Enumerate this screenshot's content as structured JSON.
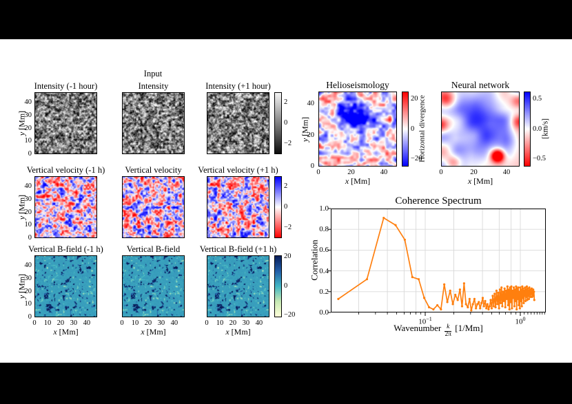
{
  "figure": {
    "input_label": "Input",
    "colors": {
      "background": "#ffffff",
      "letterbox": "#000000",
      "line_orange": "#ff7f0e",
      "grid_gray": "#d9d9d9",
      "axis_black": "#000000",
      "bfield_teal": "#41b6c4",
      "cmap_gray": [
        "#f5f5f5",
        "#0d0d0d"
      ],
      "cmap_bwr": [
        "#0000ff",
        "#ffffff",
        "#ff0000"
      ],
      "cmap_ylgnbu_r": [
        "#081d58",
        "#225ea8",
        "#41b6c4",
        "#c7e9b4",
        "#ffffd9"
      ]
    }
  },
  "axes_labels": {
    "x_var": "x",
    "y_var": "y",
    "unit": "[Mm]"
  },
  "coherence_labels": {
    "xlabel_prefix": "Wavenumber",
    "frac_num": "k",
    "frac_den": "2π",
    "xlabel_suffix": "[1/Mm]",
    "ytick_labels": [
      "0.0",
      "0.2",
      "0.4",
      "0.6",
      "0.8",
      "1.0"
    ],
    "xtick_major": [
      {
        "base": "10",
        "exp": "−1"
      },
      {
        "base": "10",
        "exp": "0"
      }
    ]
  },
  "chart_data": [
    {
      "type": "heatmap",
      "panel_group": "row-intensity",
      "titles": [
        "Intensity (-1 hour)",
        "Intensity",
        "Intensity (+1 hour)"
      ],
      "cmap": "grayscale granulation",
      "cbar_ticks": [
        "2",
        "0",
        "−2"
      ],
      "x_range": [
        0,
        48
      ],
      "y_range": [
        0,
        48
      ],
      "y_ticks": [
        40,
        30,
        20,
        10,
        0
      ],
      "x_ticks": null,
      "ylabel": "y [Mm]"
    },
    {
      "type": "heatmap",
      "panel_group": "row-vertical-velocity",
      "titles": [
        "Vertical velocity (-1 h)",
        "Vertical velocity",
        "Vertical velocity (+1 h)"
      ],
      "cmap": "red-white-blue (blue positive)",
      "cbar_ticks": [
        "2",
        "0",
        "−2"
      ],
      "x_range": [
        0,
        48
      ],
      "y_range": [
        0,
        48
      ],
      "y_ticks": [
        40,
        30,
        20,
        10,
        0
      ],
      "x_ticks": null,
      "ylabel": "y [Mm]"
    },
    {
      "type": "heatmap",
      "panel_group": "row-vertical-bfield",
      "titles": [
        "Vertical B-field (-1 h)",
        "Vertical B-field",
        "Vertical B-field (+1 h)"
      ],
      "cmap": "YlGnBu reversed (teal background, dark blue spots)",
      "cbar_ticks": [
        "20",
        "0",
        "−20"
      ],
      "x_range": [
        0,
        48
      ],
      "y_range": [
        0,
        48
      ],
      "y_ticks": [
        40,
        30,
        20,
        10,
        0
      ],
      "x_ticks": [
        0,
        10,
        20,
        30,
        40
      ],
      "xlabel": "x [Mm]",
      "ylabel": "y [Mm]"
    },
    {
      "type": "heatmap",
      "panel_group": "map-helioseismology",
      "titles": [
        "Helioseismology"
      ],
      "cmap": "blue-white-red (red positive), mottled with blue blob upper-centre",
      "cbar_ticks": [
        "20",
        "0",
        "−20"
      ],
      "cbar_label": "Horizontal divergence",
      "x_range": [
        0,
        48
      ],
      "y_range": [
        0,
        48
      ],
      "y_ticks": [
        40,
        20,
        0
      ],
      "x_ticks": [
        0,
        20,
        40
      ],
      "xlabel": "x [Mm]",
      "ylabel": "y [Mm]"
    },
    {
      "type": "heatmap",
      "panel_group": "map-neural-network",
      "titles": [
        "Neural network"
      ],
      "cmap": "blue-white-red (blue positive), smooth; strong red blob lower-right",
      "cbar_ticks": [
        "0.5",
        "0.0",
        "−0.5"
      ],
      "cbar_label": "[km/s]",
      "x_range": [
        0,
        48
      ],
      "y_range": [
        0,
        48
      ],
      "y_ticks": null,
      "x_ticks": [
        0,
        20,
        40
      ],
      "xlabel": "x [Mm]"
    },
    {
      "type": "line",
      "title": "Coherence Spectrum",
      "xlabel": "Wavenumber k/2π [1/Mm]",
      "ylabel": "Correlation",
      "xscale": "log",
      "xlim": [
        0.0102,
        1.85
      ],
      "ylim": [
        0.0,
        1.0
      ],
      "x_major_ticks": [
        0.1,
        1.0
      ],
      "y_ticks": [
        0.0,
        0.2,
        0.4,
        0.6,
        0.8,
        1.0
      ],
      "grid": true,
      "legend": false,
      "series": [
        {
          "name": "coherence",
          "color": "#ff7f0e",
          "marker": "dot",
          "x": [
            0.0122,
            0.0244,
            0.0366,
            0.0488,
            0.061,
            0.0732,
            0.0854,
            0.0976,
            0.1098,
            0.122,
            0.1342,
            0.1464,
            0.1586,
            0.1708,
            0.183,
            0.1952,
            0.2074,
            0.2196,
            0.2318,
            0.244,
            0.2562,
            0.2684,
            0.2806,
            0.2928,
            0.305,
            0.3172,
            0.3294,
            0.3416,
            0.3538,
            0.366,
            0.3782,
            0.3904,
            0.4026,
            0.4148,
            0.427,
            0.4392,
            0.4514,
            0.4636,
            0.4758,
            0.488,
            0.5002,
            0.5124,
            0.5246,
            0.5368,
            0.549,
            0.5612,
            0.5734,
            0.5856,
            0.5978,
            0.61,
            0.6222,
            0.6344,
            0.6466,
            0.6588,
            0.671,
            0.6832,
            0.6954,
            0.7076,
            0.7198,
            0.732,
            0.7442,
            0.7564,
            0.7686,
            0.7808,
            0.793,
            0.8052,
            0.8174,
            0.8296,
            0.8418,
            0.854,
            0.8662,
            0.8784,
            0.8906,
            0.9028,
            0.915,
            0.9272,
            0.9394,
            0.9516,
            0.9638,
            0.976,
            0.9882,
            1.0004,
            1.0126,
            1.0248,
            1.037,
            1.0492,
            1.0614,
            1.0736,
            1.0858,
            1.098,
            1.1102,
            1.1224,
            1.1346,
            1.1468,
            1.159,
            1.1712,
            1.1834,
            1.1956,
            1.2078,
            1.22,
            1.2322,
            1.2444,
            1.2566,
            1.2688,
            1.281,
            1.2932,
            1.3054,
            1.3176,
            1.3298,
            1.342,
            1.3542,
            1.3664,
            1.3786,
            1.3908,
            1.403
          ],
          "y": [
            0.13,
            0.32,
            0.91,
            0.84,
            0.7,
            0.34,
            0.32,
            0.14,
            0.05,
            0.03,
            0.07,
            0.03,
            0.27,
            0.1,
            0.21,
            0.08,
            0.17,
            0.12,
            0.22,
            0.06,
            0.28,
            0.08,
            0.05,
            0.13,
            0.02,
            0.08,
            0.13,
            0.04,
            0.08,
            0.1,
            0.04,
            0.09,
            0.14,
            0.06,
            0.11,
            0.04,
            0.08,
            0.03,
            0.06,
            0.12,
            0.04,
            0.16,
            0.06,
            0.18,
            0.05,
            0.21,
            0.08,
            0.19,
            0.04,
            0.22,
            0.09,
            0.24,
            0.06,
            0.2,
            0.11,
            0.23,
            0.05,
            0.21,
            0.13,
            0.25,
            0.07,
            0.22,
            0.03,
            0.24,
            0.1,
            0.25,
            0.04,
            0.21,
            0.14,
            0.24,
            0.06,
            0.22,
            0.11,
            0.25,
            0.03,
            0.23,
            0.13,
            0.24,
            0.07,
            0.2,
            0.04,
            0.24,
            0.11,
            0.22,
            0.06,
            0.25,
            0.14,
            0.23,
            0.09,
            0.21,
            0.16,
            0.24,
            0.11,
            0.22,
            0.15,
            0.25,
            0.12,
            0.23,
            0.16,
            0.21,
            0.13,
            0.24,
            0.17,
            0.22,
            0.15,
            0.2,
            0.18,
            0.23,
            0.15,
            0.21,
            0.18,
            0.22,
            0.16,
            0.2,
            0.12
          ]
        }
      ]
    }
  ]
}
